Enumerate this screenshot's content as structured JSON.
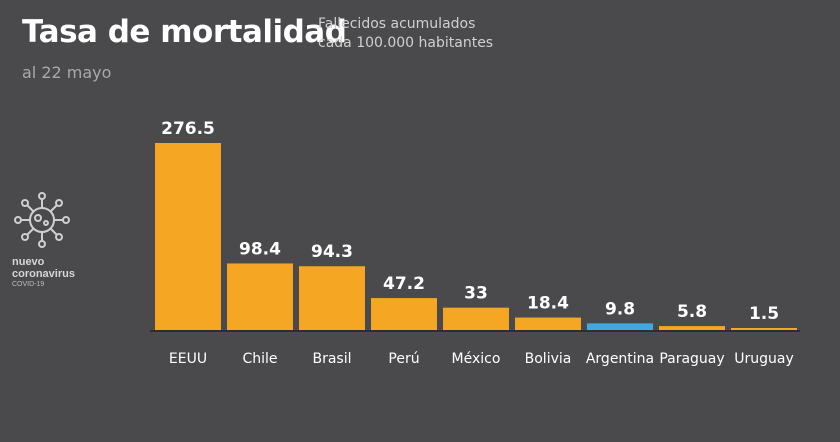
{
  "header": {
    "title": "Tasa de mortalidad",
    "subtitle_line1": "Fallecidos acumulados",
    "subtitle_line2": "cada 100.000 habitantes",
    "date": "al 22 mayo"
  },
  "logo": {
    "line1": "nuevo",
    "line2": "coronavirus",
    "line3": "COVID-19",
    "icon": "coronavirus-icon"
  },
  "colors": {
    "background": "#4a4a4c",
    "bar": "#f5a623",
    "highlight_bar": "#3fa9e0",
    "baseline": "#2e2e30"
  },
  "chart_data": {
    "type": "bar",
    "categories": [
      "EEUU",
      "Chile",
      "Brasil",
      "Perú",
      "México",
      "Bolivia",
      "Argentina",
      "Paraguay",
      "Uruguay"
    ],
    "values": [
      276.5,
      98.4,
      94.3,
      47.2,
      33,
      18.4,
      9.8,
      5.8,
      1.5
    ],
    "value_labels": [
      "276.5",
      "98.4",
      "94.3",
      "47.2",
      "33",
      "18.4",
      "9.8",
      "5.8",
      "1.5"
    ],
    "highlight": "Argentina",
    "title": "Tasa de mortalidad",
    "xlabel": "",
    "ylabel": "",
    "ylim": [
      0,
      276.5
    ],
    "grid": false
  }
}
